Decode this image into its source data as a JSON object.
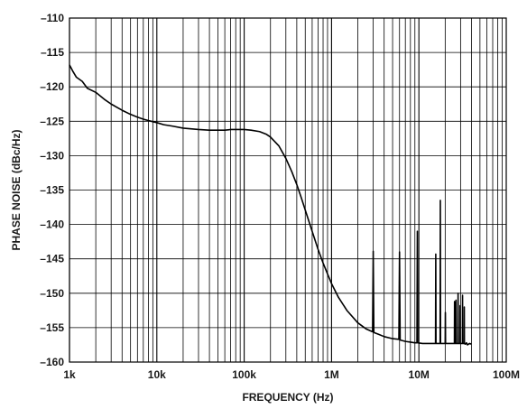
{
  "chart_data": {
    "type": "line",
    "title": "",
    "xlabel": "FREQUENCY (Hz)",
    "ylabel": "PHASE NOISE (dBc/Hz)",
    "x_scale": "log",
    "xlim": [
      1000,
      100000000
    ],
    "ylim": [
      -160,
      -110
    ],
    "x_ticks": [
      1000,
      10000,
      100000,
      1000000,
      10000000,
      100000000
    ],
    "x_tick_labels": [
      "1k",
      "10k",
      "100k",
      "1M",
      "10M",
      "100M"
    ],
    "y_ticks": [
      -110,
      -115,
      -120,
      -125,
      -130,
      -135,
      -140,
      -145,
      -150,
      -155,
      -160
    ],
    "y_tick_labels": [
      "–110",
      "–115",
      "–120",
      "–125",
      "–130",
      "–135",
      "–140",
      "–145",
      "–150",
      "–155",
      "–160"
    ],
    "grid": true,
    "line_color": "#000000",
    "series": [
      {
        "x": [
          1000,
          1100,
          1200,
          1400,
          1600,
          2000,
          2500,
          3000,
          4000,
          5000,
          6000,
          7000,
          8000,
          10000,
          12000,
          15000,
          20000,
          30000,
          40000,
          50000,
          60000,
          70000,
          80000,
          90000,
          100000,
          120000,
          150000,
          180000,
          200000,
          250000,
          300000,
          350000,
          400000,
          450000,
          500000,
          600000,
          700000,
          800000,
          900000,
          1000000,
          1200000,
          1500000,
          2000000,
          2500000,
          2950000,
          3000000,
          3050000,
          3500000,
          4000000,
          5000000,
          5900000,
          6000000,
          6100000,
          7000000,
          8000000,
          9000000,
          9500000,
          9600000,
          9700000,
          11000000,
          13000000,
          15000000,
          15500000,
          15600000,
          15700000,
          17000000,
          17500000,
          17600000,
          17700000,
          19000000,
          20000000,
          20100000,
          20200000,
          23000000,
          25000000,
          25500000,
          25600000,
          25700000,
          26500000,
          26600000,
          26700000,
          27500000,
          28000000,
          28100000,
          28200000,
          29000000,
          29500000,
          29600000,
          29700000,
          31000000,
          31500000,
          31600000,
          31700000,
          32500000,
          33000000,
          33100000,
          33200000,
          34000000,
          35000000,
          36000000,
          38000000,
          40000000
        ],
        "y": [
          -116.8,
          -117.8,
          -118.6,
          -119.2,
          -120.2,
          -120.8,
          -121.8,
          -122.5,
          -123.4,
          -124.0,
          -124.4,
          -124.7,
          -124.9,
          -125.2,
          -125.5,
          -125.7,
          -126.0,
          -126.2,
          -126.3,
          -126.3,
          -126.3,
          -126.2,
          -126.2,
          -126.2,
          -126.2,
          -126.3,
          -126.5,
          -126.9,
          -127.3,
          -128.6,
          -130.4,
          -132.3,
          -134.2,
          -136.1,
          -137.9,
          -141.0,
          -143.6,
          -145.6,
          -147.2,
          -148.6,
          -150.6,
          -152.5,
          -154.3,
          -155.2,
          -155.6,
          -143.9,
          -155.7,
          -156.0,
          -156.3,
          -156.6,
          -156.7,
          -144.0,
          -156.8,
          -157.0,
          -157.1,
          -157.2,
          -157.2,
          -141.0,
          -157.2,
          -157.3,
          -157.3,
          -157.3,
          -157.3,
          -144.3,
          -157.3,
          -157.3,
          -157.3,
          -136.5,
          -157.3,
          -157.3,
          -157.3,
          -152.8,
          -157.3,
          -157.3,
          -157.3,
          -157.3,
          -151.2,
          -157.3,
          -157.3,
          -151.0,
          -157.3,
          -157.3,
          -157.3,
          -150.0,
          -157.3,
          -157.3,
          -157.3,
          -151.8,
          -157.3,
          -157.3,
          -157.3,
          -150.3,
          -157.3,
          -157.3,
          -157.3,
          -152.0,
          -157.3,
          -157.4,
          -157.2,
          -157.5,
          -157.3,
          -157.4
        ]
      }
    ]
  }
}
